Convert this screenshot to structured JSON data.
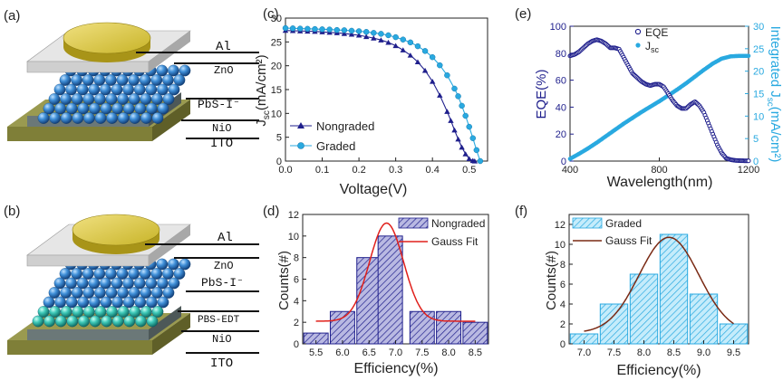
{
  "panel_letters": {
    "a": "(a)",
    "b": "(b)",
    "c": "(c)",
    "d": "(d)",
    "e": "(e)",
    "f": "(f)"
  },
  "device_a": {
    "layers": [
      "Al",
      "ZnO",
      "PbS-I⁻",
      "NiO",
      "ITO"
    ]
  },
  "device_b": {
    "layers": [
      "Al",
      "ZnO",
      "PbS-I⁻",
      "PBS-EDT",
      "NiO",
      "ITO"
    ]
  },
  "colors": {
    "navy": "#1f1f8c",
    "cyan": "#29a9e0",
    "red": "#e0201b",
    "brown": "#7a2a14",
    "gold": "#d4c030",
    "sphere_blue": "#3f8fd8",
    "sphere_teal": "#3ec9b8"
  },
  "chart_data": [
    {
      "panel": "c",
      "type": "line",
      "xlabel": "Voltage(V)",
      "ylabel_main": "J",
      "ylabel_sub": "sc",
      "ylabel_unit": "(mA/cm²)",
      "xlim": [
        0,
        0.55
      ],
      "ylim": [
        0,
        30
      ],
      "xticks": [
        "0.0",
        "0.1",
        "0.2",
        "0.3",
        "0.4",
        "0.5"
      ],
      "yticks": [
        "0",
        "5",
        "10",
        "15",
        "20",
        "25",
        "30"
      ],
      "legend_position": "bottom-left",
      "series": [
        {
          "name": "Nongraded",
          "marker": "triangle",
          "color": "#1f1f8c",
          "x": [
            0,
            0.02,
            0.04,
            0.06,
            0.08,
            0.1,
            0.12,
            0.14,
            0.16,
            0.18,
            0.2,
            0.22,
            0.24,
            0.26,
            0.28,
            0.3,
            0.32,
            0.34,
            0.36,
            0.38,
            0.4,
            0.42,
            0.44,
            0.45,
            0.46,
            0.47,
            0.48,
            0.49,
            0.5,
            0.51,
            0.515
          ],
          "y": [
            27.4,
            27.35,
            27.3,
            27.25,
            27.2,
            27.1,
            27.0,
            26.9,
            26.75,
            26.6,
            26.4,
            26.1,
            25.8,
            25.4,
            24.9,
            24.2,
            23.3,
            22.2,
            20.8,
            19.0,
            16.7,
            13.8,
            10.4,
            8.5,
            6.5,
            4.6,
            2.9,
            1.5,
            0.5,
            0.1,
            0
          ]
        },
        {
          "name": "Graded",
          "marker": "circle",
          "color": "#29a9e0",
          "x": [
            0,
            0.02,
            0.04,
            0.06,
            0.08,
            0.1,
            0.12,
            0.14,
            0.16,
            0.18,
            0.2,
            0.22,
            0.24,
            0.26,
            0.28,
            0.3,
            0.32,
            0.34,
            0.36,
            0.38,
            0.4,
            0.42,
            0.44,
            0.46,
            0.47,
            0.48,
            0.49,
            0.5,
            0.51,
            0.52,
            0.53
          ],
          "y": [
            27.9,
            27.85,
            27.8,
            27.75,
            27.7,
            27.65,
            27.6,
            27.5,
            27.45,
            27.35,
            27.25,
            27.1,
            26.9,
            26.7,
            26.4,
            26.0,
            25.5,
            24.9,
            24.1,
            23.1,
            21.8,
            20.1,
            18.0,
            15.2,
            13.6,
            11.6,
            9.5,
            7.2,
            4.8,
            2.3,
            0
          ]
        }
      ]
    },
    {
      "panel": "d",
      "type": "bar",
      "xlabel": "Efficiency(%)",
      "ylabel": "Counts(#)",
      "xlim": [
        5.25,
        8.75
      ],
      "ylim": [
        0,
        12
      ],
      "xticks": [
        "5.5",
        "6.0",
        "6.5",
        "7.0",
        "7.5",
        "8.0",
        "8.5"
      ],
      "yticks": [
        "0",
        "2",
        "4",
        "6",
        "8",
        "10",
        "12"
      ],
      "legend_position": "top-right",
      "bin_width": 0.5,
      "centers": [
        5.5,
        6.0,
        6.5,
        6.9,
        7.5,
        8.0,
        8.5
      ],
      "counts": [
        1,
        3,
        8,
        10,
        3,
        3,
        2
      ],
      "bar_series_name": "Nongraded",
      "fit_name": "Gauss Fit",
      "fit": {
        "base": 2.1,
        "amplitude": 9.1,
        "center": 6.83,
        "sigma": 0.32
      }
    },
    {
      "panel": "e",
      "type": "line",
      "xlabel": "Wavelength(nm)",
      "ylabel_left": "EQE(%)",
      "ylabel_right_main": "Integrated J",
      "ylabel_right_sub": "sc",
      "ylabel_right_unit": "(mA/cm²)",
      "xlim": [
        400,
        1200
      ],
      "ylim_left": [
        0,
        100
      ],
      "ylim_right": [
        0,
        30
      ],
      "xticks": [
        "400",
        "800",
        "1200"
      ],
      "yticks_left": [
        "0",
        "20",
        "40",
        "60",
        "80",
        "100"
      ],
      "yticks_right": [
        "0",
        "5",
        "10",
        "15",
        "20",
        "25",
        "30"
      ],
      "legend_position": "top-right",
      "series": [
        {
          "name": "EQE",
          "axis": "left",
          "color": "#1f1f8c",
          "x": [
            400,
            420,
            440,
            460,
            480,
            500,
            520,
            540,
            560,
            580,
            600,
            620,
            640,
            660,
            680,
            700,
            720,
            740,
            760,
            780,
            800,
            820,
            840,
            860,
            880,
            900,
            920,
            940,
            960,
            980,
            1000,
            1020,
            1040,
            1060,
            1080,
            1100,
            1120,
            1140,
            1160,
            1180,
            1200
          ],
          "y": [
            78,
            79,
            81,
            84,
            87,
            89,
            90,
            89,
            87,
            84,
            84,
            83,
            77,
            71,
            65,
            62,
            59,
            57,
            56,
            57,
            57,
            55,
            50,
            45,
            41,
            39,
            39,
            42,
            44,
            41,
            36,
            28,
            20,
            12,
            6,
            2,
            1,
            0.5,
            0.3,
            0.2,
            0.2
          ]
        },
        {
          "name": "J",
          "sub": "sc",
          "axis": "right",
          "color": "#29a9e0",
          "x": [
            400,
            440,
            480,
            520,
            560,
            600,
            640,
            680,
            720,
            760,
            800,
            840,
            880,
            920,
            960,
            1000,
            1040,
            1080,
            1120,
            1160,
            1200
          ],
          "y": [
            0.5,
            1.6,
            2.8,
            4.1,
            5.5,
            6.9,
            8.3,
            9.6,
            10.9,
            12.1,
            13.3,
            14.6,
            15.9,
            17.3,
            18.8,
            20.3,
            21.7,
            22.8,
            23.3,
            23.4,
            23.4
          ]
        }
      ]
    },
    {
      "panel": "f",
      "type": "bar",
      "xlabel": "Efficiency(%)",
      "ylabel": "Counts(#)",
      "xlim": [
        6.75,
        9.75
      ],
      "ylim": [
        0,
        13
      ],
      "xticks": [
        "7.0",
        "7.5",
        "8.0",
        "8.5",
        "9.0",
        "9.5"
      ],
      "yticks": [
        "0",
        "2",
        "4",
        "6",
        "8",
        "10",
        "12"
      ],
      "legend_position": "top-left",
      "bin_width": 0.5,
      "centers": [
        7.0,
        7.5,
        8.0,
        8.5,
        9.0,
        9.5
      ],
      "counts": [
        1,
        4,
        7,
        11,
        5,
        2
      ],
      "bar_series_name": "Graded",
      "fit_name": "Gauss Fit",
      "fit": {
        "base": 1.1,
        "amplitude": 9.6,
        "center": 8.42,
        "sigma": 0.5
      }
    }
  ]
}
